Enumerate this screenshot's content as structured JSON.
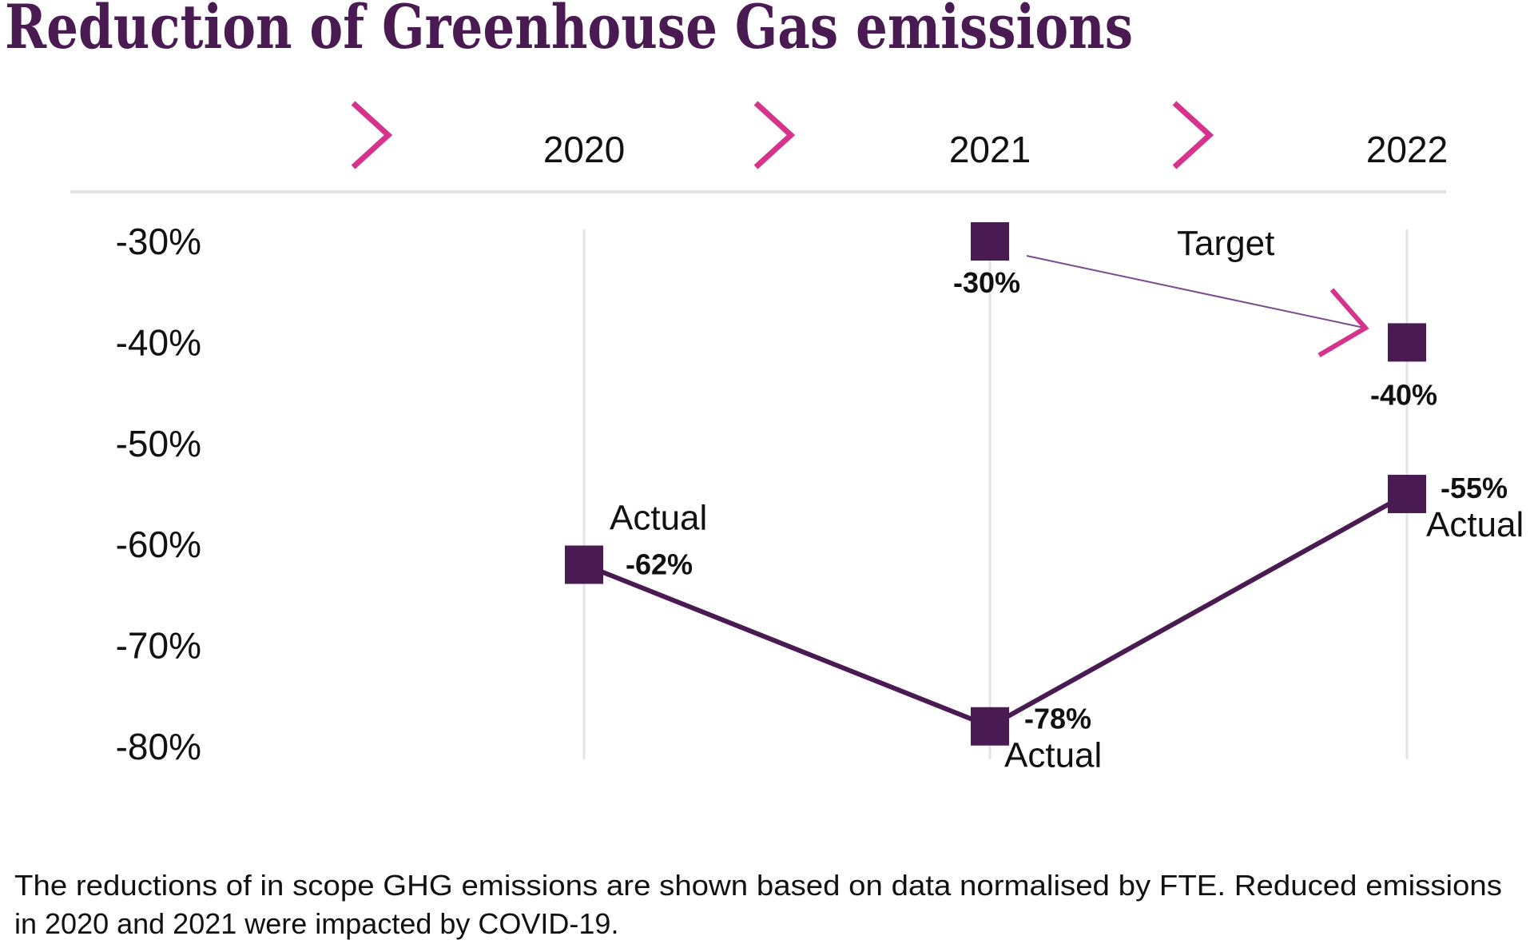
{
  "chart_data": {
    "type": "line",
    "title": "Reduction of Greenhouse Gas emissions",
    "categories": [
      "2020",
      "2021",
      "2022"
    ],
    "ylim": [
      -80,
      -30
    ],
    "ytick_values": [
      -30,
      -40,
      -50,
      -60,
      -70,
      -80
    ],
    "ytick_labels": [
      "-30%",
      "-40%",
      "-50%",
      "-60%",
      "-70%",
      "-80%"
    ],
    "series": [
      {
        "name": "Actual",
        "values": [
          -62,
          -78,
          -55
        ],
        "data_labels": [
          "-62%",
          "-78%",
          "-55%"
        ],
        "point_labels": [
          "Actual",
          "Actual",
          "Actual"
        ]
      },
      {
        "name": "Target",
        "values": [
          null,
          -30,
          -40
        ],
        "data_labels": [
          "",
          "-30%",
          "-40%"
        ]
      }
    ],
    "footnote_lines": [
      "The reductions of in scope GHG emissions are shown based on data normalised by FTE. Reduced emissions",
      "in 2020 and 2021 were impacted by COVID-19."
    ],
    "colors": {
      "title": "#4a1a52",
      "marker": "#4a1a52",
      "actual_line": "#4a1a52",
      "target_line": "#7a4b8f",
      "chevron": "#d6338c",
      "gridline": "#e4e4e4",
      "text": "#111111"
    }
  }
}
